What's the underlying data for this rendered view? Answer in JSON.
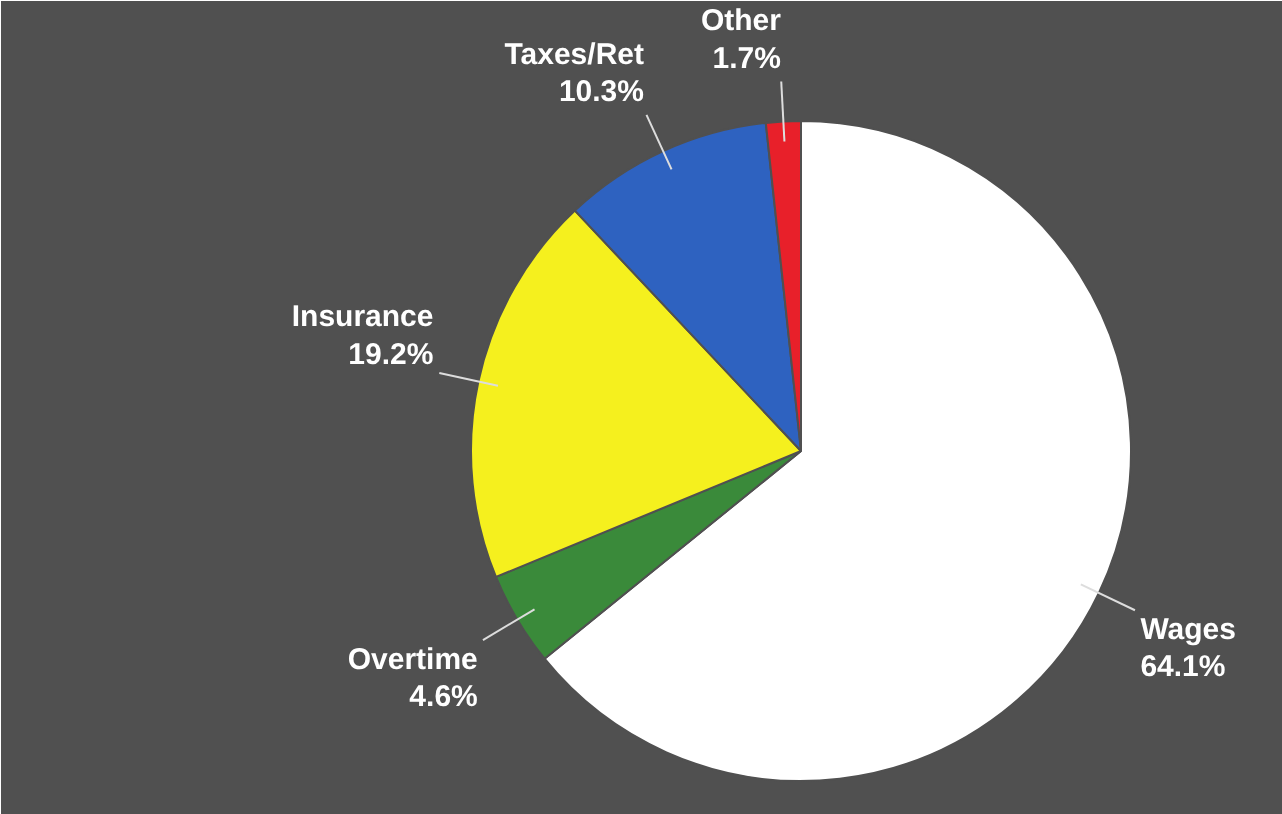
{
  "chart_data": {
    "type": "pie",
    "categories": [
      "Wages",
      "Overtime",
      "Insurance",
      "Taxes/Ret",
      "Other"
    ],
    "values": [
      64.1,
      4.6,
      19.2,
      10.3,
      1.7
    ],
    "colors": [
      "#ffffff",
      "#3a8a3a",
      "#f5f01e",
      "#2e62c0",
      "#e8202a"
    ],
    "value_labels": [
      "64.1%",
      "4.6%",
      "19.2%",
      "10.3%",
      "1.7%"
    ]
  }
}
